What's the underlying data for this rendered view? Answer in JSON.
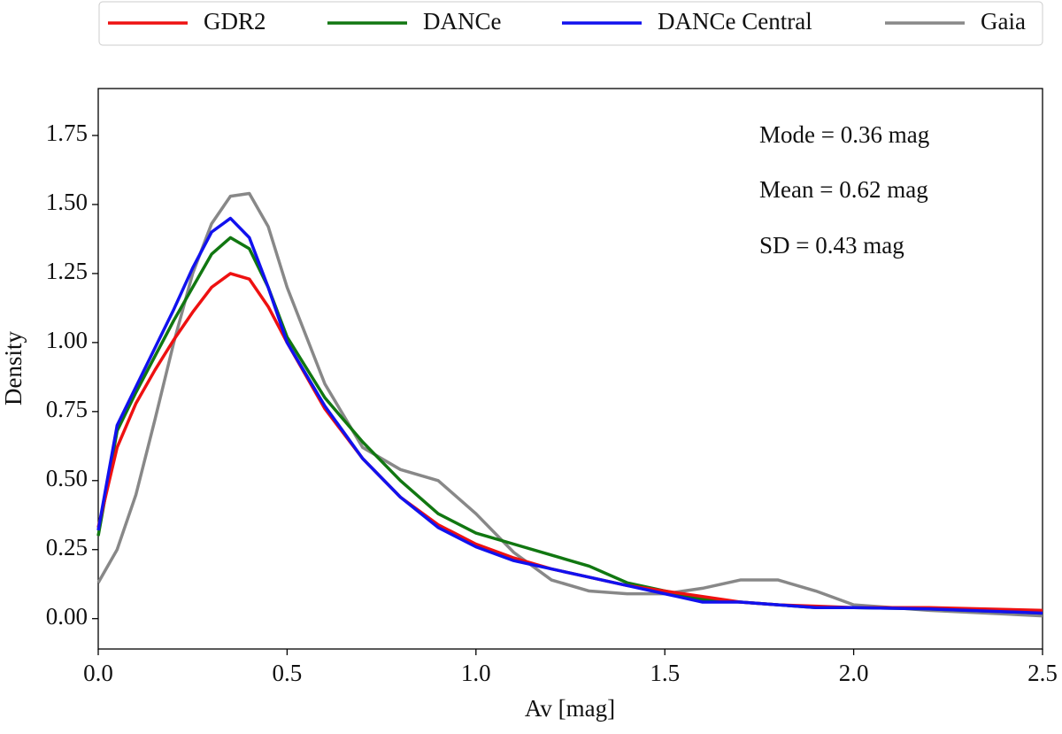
{
  "chart_data": {
    "type": "line",
    "xlabel": "Av [mag]",
    "ylabel": "Density",
    "annotations": [
      "Mode = 0.36 mag",
      "Mean = 0.62 mag",
      "SD = 0.43 mag"
    ],
    "x": [
      0,
      0.05,
      0.1,
      0.15,
      0.2,
      0.25,
      0.3,
      0.35,
      0.4,
      0.45,
      0.5,
      0.6,
      0.7,
      0.8,
      0.9,
      1.0,
      1.1,
      1.2,
      1.3,
      1.4,
      1.5,
      1.6,
      1.7,
      1.8,
      1.9,
      2.0,
      2.2,
      2.5
    ],
    "series": [
      {
        "name": "GDR2",
        "color": "#ee1111",
        "values": [
          0.33,
          0.62,
          0.78,
          0.9,
          1.01,
          1.11,
          1.2,
          1.25,
          1.23,
          1.13,
          1.0,
          0.76,
          0.58,
          0.44,
          0.34,
          0.27,
          0.22,
          0.18,
          0.15,
          0.12,
          0.1,
          0.08,
          0.06,
          0.05,
          0.045,
          0.04,
          0.04,
          0.03
        ]
      },
      {
        "name": "DANCe",
        "color": "#117711",
        "values": [
          0.3,
          0.68,
          0.82,
          0.95,
          1.08,
          1.2,
          1.32,
          1.38,
          1.34,
          1.2,
          1.02,
          0.8,
          0.64,
          0.5,
          0.38,
          0.31,
          0.27,
          0.23,
          0.19,
          0.13,
          0.1,
          0.07,
          0.06,
          0.05,
          0.04,
          0.04,
          0.035,
          0.02
        ]
      },
      {
        "name": "DANCe Central",
        "color": "#1111ee",
        "values": [
          0.32,
          0.7,
          0.84,
          0.98,
          1.12,
          1.27,
          1.4,
          1.45,
          1.38,
          1.2,
          1.0,
          0.77,
          0.58,
          0.44,
          0.33,
          0.26,
          0.21,
          0.18,
          0.15,
          0.12,
          0.09,
          0.06,
          0.06,
          0.05,
          0.04,
          0.04,
          0.035,
          0.02
        ]
      },
      {
        "name": "Gaia",
        "color": "#888888",
        "values": [
          0.13,
          0.25,
          0.45,
          0.72,
          1.0,
          1.25,
          1.43,
          1.53,
          1.54,
          1.42,
          1.2,
          0.85,
          0.62,
          0.54,
          0.5,
          0.38,
          0.24,
          0.14,
          0.1,
          0.09,
          0.09,
          0.11,
          0.14,
          0.14,
          0.1,
          0.05,
          0.03,
          0.01
        ]
      }
    ],
    "xlim": [
      0,
      2.5
    ],
    "xticks": [
      {
        "value": 0,
        "label": "0.0"
      },
      0.5,
      {
        "value": 1,
        "label": "1.0"
      },
      1.5,
      {
        "value": 2,
        "label": "2.0"
      },
      2.5
    ],
    "ylim": [
      -0.11,
      1.92
    ],
    "yticks": [
      {
        "value": 0,
        "label": "0.00"
      },
      0.25,
      {
        "value": 0.5,
        "label": "0.50"
      },
      0.75,
      {
        "value": 1,
        "label": "1.00"
      },
      1.25,
      {
        "value": 1.5,
        "label": "1.50"
      },
      1.75
    ],
    "legend": "top"
  }
}
